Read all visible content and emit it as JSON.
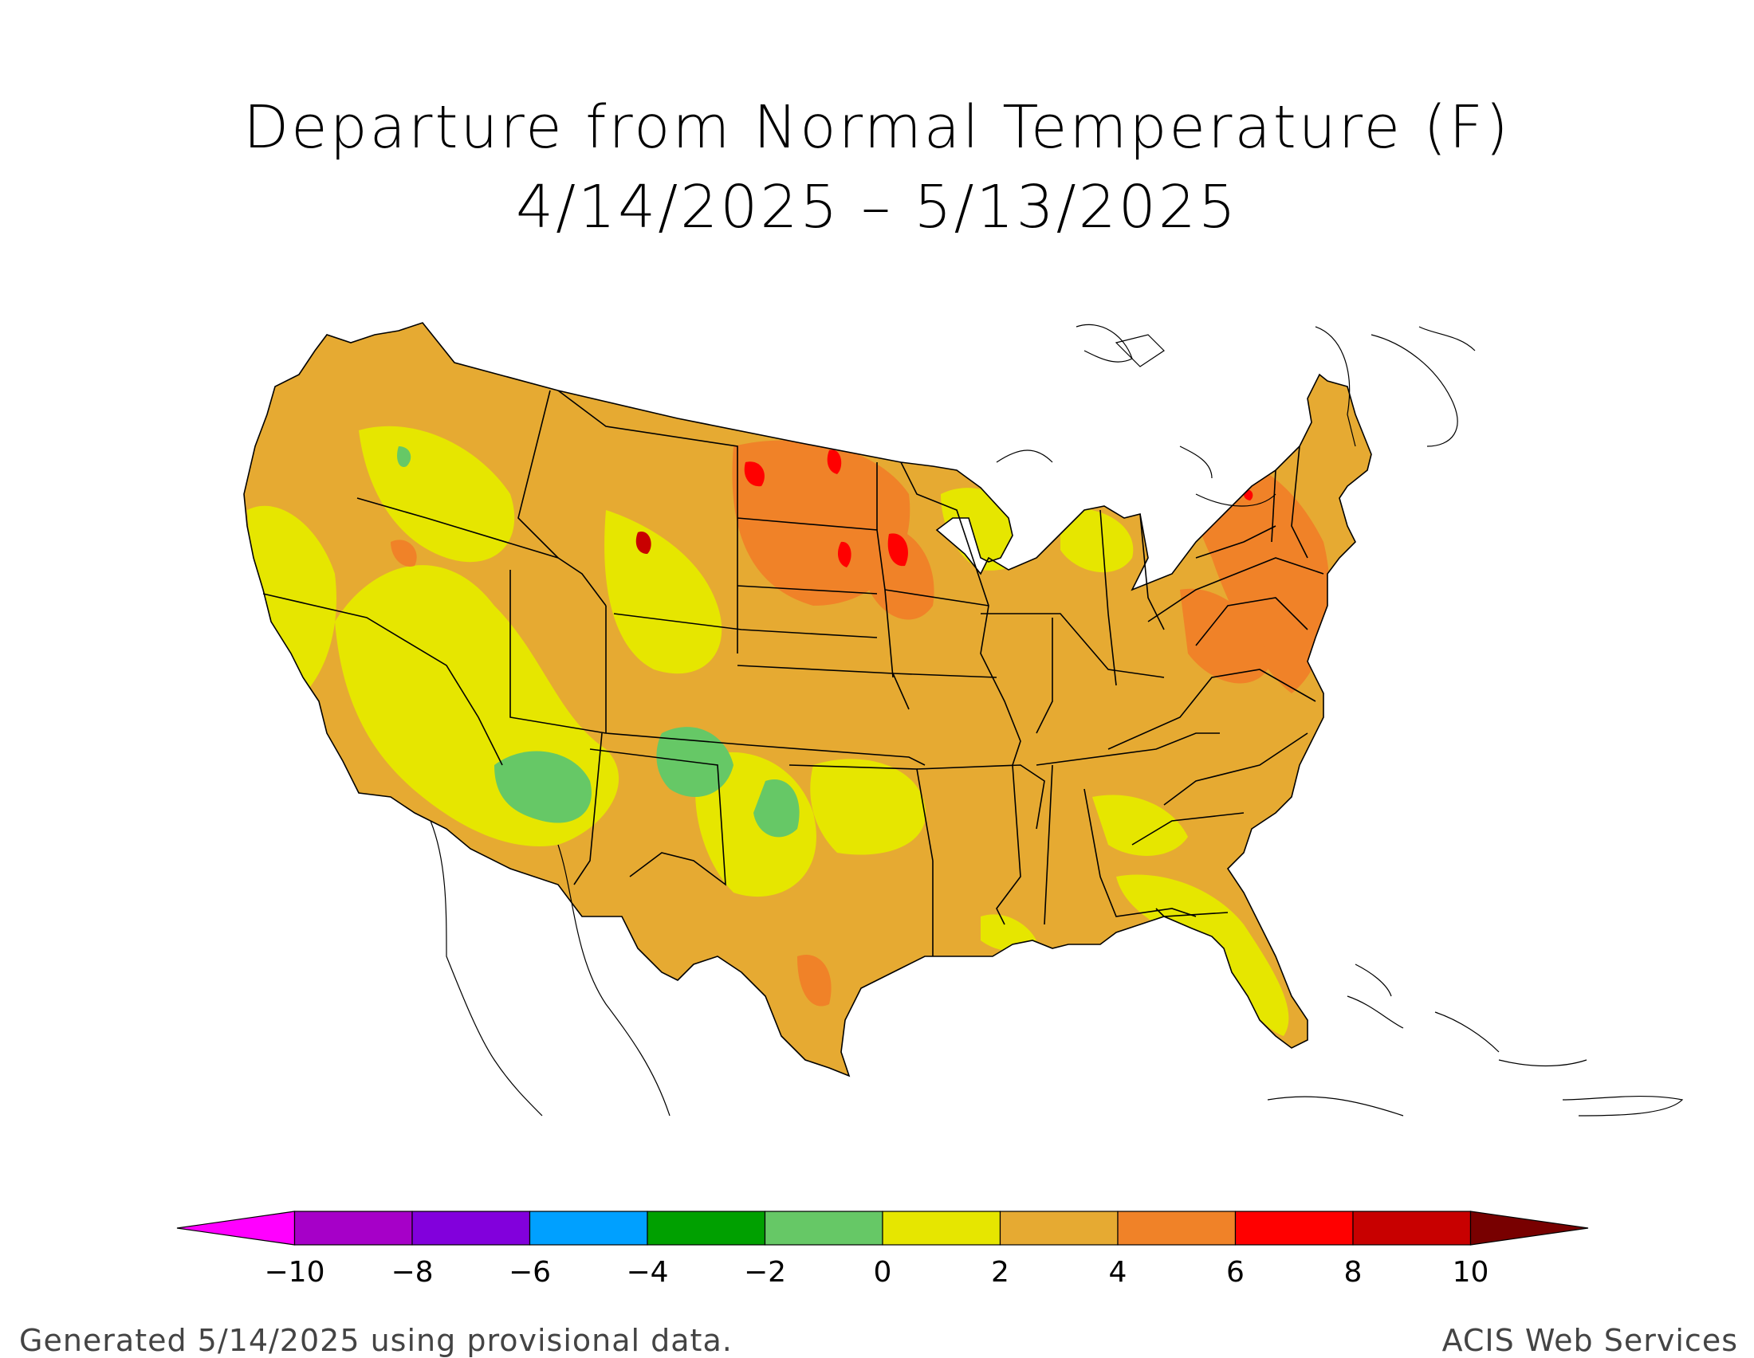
{
  "title": {
    "line1": "Departure from Normal Temperature (F)",
    "line2": "4/14/2025 – 5/13/2025"
  },
  "legend": {
    "bins": [
      {
        "from": null,
        "to": -10,
        "color": "#ff00ff"
      },
      {
        "from": -10,
        "to": -8,
        "color": "#a600c8"
      },
      {
        "from": -8,
        "to": -6,
        "color": "#8200dc"
      },
      {
        "from": -6,
        "to": -4,
        "color": "#00a0ff"
      },
      {
        "from": -4,
        "to": -2,
        "color": "#00a000"
      },
      {
        "from": -2,
        "to": 0,
        "color": "#66c866"
      },
      {
        "from": 0,
        "to": 2,
        "color": "#e6e600"
      },
      {
        "from": 2,
        "to": 4,
        "color": "#e6aa32"
      },
      {
        "from": 4,
        "to": 6,
        "color": "#f08228"
      },
      {
        "from": 6,
        "to": 8,
        "color": "#ff0000"
      },
      {
        "from": 8,
        "to": 10,
        "color": "#c80000"
      },
      {
        "from": 10,
        "to": null,
        "color": "#780000"
      }
    ],
    "tick_labels": [
      "−10",
      "−8",
      "−6",
      "−4",
      "−2",
      "0",
      "2",
      "4",
      "6",
      "8",
      "10"
    ]
  },
  "footer": {
    "left": "Generated 5/14/2025 using provisional data.",
    "right": "ACIS Web Services"
  }
}
